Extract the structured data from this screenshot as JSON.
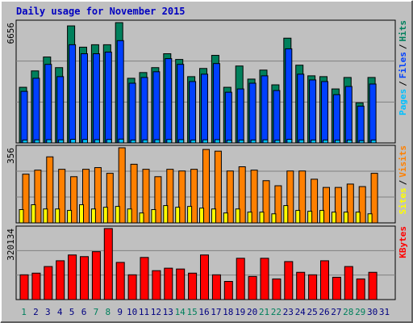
{
  "chart_data": [
    {
      "type": "bar",
      "title": "Daily usage for November 2015",
      "legend_separator": "/",
      "ylim": [
        0,
        6656
      ],
      "yticks": [
        6656
      ],
      "series": [
        {
          "name": "Hits",
          "color": "#00805c",
          "values": [
            3079,
            3985,
            4754,
            4166,
            6475,
            5298,
            5433,
            5433,
            6656,
            3577,
            3894,
            4166,
            4935,
            4618,
            3668,
            4120,
            4845,
            3079,
            4256,
            3532,
            4030,
            3215,
            5796,
            4301,
            3713,
            3668,
            2988,
            3622,
            2219,
            3622,
            null
          ]
        },
        {
          "name": "Files",
          "color": "#0040ff",
          "values": [
            2853,
            3577,
            4347,
            3668,
            5433,
            4935,
            4935,
            5026,
            5660,
            3305,
            3622,
            3939,
            4664,
            4347,
            3396,
            3803,
            4392,
            2807,
            2988,
            3305,
            3713,
            2898,
            5207,
            3803,
            3486,
            3396,
            2671,
            3124,
            2037,
            3260,
            null
          ]
        },
        {
          "name": "Pages",
          "color": "#00c0ff",
          "values": [
            160,
            170,
            180,
            170,
            200,
            190,
            180,
            190,
            210,
            160,
            170,
            180,
            190,
            180,
            160,
            170,
            180,
            150,
            160,
            160,
            170,
            150,
            200,
            170,
            160,
            160,
            150,
            160,
            130,
            160,
            null
          ]
        }
      ]
    },
    {
      "type": "bar",
      "legend_separator": "/",
      "ylim": [
        0,
        356
      ],
      "yticks": [
        356
      ],
      "series": [
        {
          "name": "Visits",
          "color": "#ff8000",
          "values": [
            231,
            250,
            313,
            254,
            219,
            254,
            262,
            235,
            356,
            278,
            254,
            219,
            254,
            246,
            254,
            348,
            340,
            246,
            266,
            250,
            200,
            176,
            246,
            246,
            207,
            168,
            168,
            184,
            172,
            235,
            null
          ]
        },
        {
          "name": "Sites",
          "color": "#ffff00",
          "values": [
            63,
            86,
            66,
            66,
            59,
            86,
            66,
            74,
            78,
            66,
            47,
            63,
            82,
            74,
            78,
            70,
            66,
            47,
            66,
            51,
            51,
            43,
            82,
            59,
            55,
            59,
            51,
            51,
            51,
            43,
            null
          ]
        }
      ]
    },
    {
      "type": "bar",
      "ylim": [
        0,
        320134
      ],
      "yticks": [
        320134
      ],
      "categories": [
        "1",
        "2",
        "3",
        "4",
        "5",
        "6",
        "7",
        "8",
        "9",
        "10",
        "11",
        "12",
        "13",
        "14",
        "15",
        "16",
        "17",
        "18",
        "19",
        "20",
        "21",
        "22",
        "23",
        "24",
        "25",
        "26",
        "27",
        "28",
        "29",
        "30",
        "31"
      ],
      "weekend_categories": [
        "1",
        "7",
        "8",
        "14",
        "15",
        "21",
        "22",
        "28",
        "29"
      ],
      "category_color": "#000080",
      "weekend_color": "#00805c",
      "series": [
        {
          "name": "KBytes",
          "color": "#ff0000",
          "values": [
            111674,
            119120,
            148899,
            174956,
            201015,
            193570,
            215904,
            320134,
            167512,
            111674,
            189847,
            130287,
            141454,
            137732,
            119120,
            201015,
            111674,
            81895,
            186124,
            104229,
            186124,
            93062,
            171233,
            122841,
            111674,
            174956,
            100507,
            148899,
            93062,
            122841,
            null
          ]
        }
      ]
    }
  ]
}
